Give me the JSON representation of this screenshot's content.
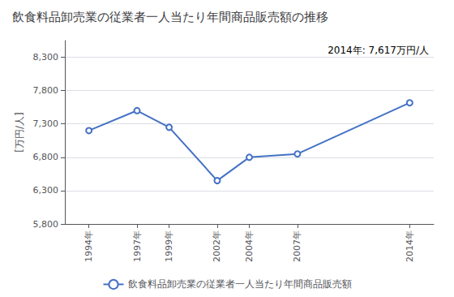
{
  "chart_data": {
    "type": "line",
    "title": "飲食料品卸売業の従業者一人当たり年間商品販売額の推移",
    "ylabel": "[万円/人]",
    "annotation": "2014年: 7,617万円/人",
    "x": [
      1994,
      1997,
      1999,
      2002,
      2004,
      2007,
      2014
    ],
    "series": [
      {
        "name": "飲食料品卸売業の従業者一人当たり年間商品販売額",
        "color": "#4472C4",
        "values": [
          7200,
          7500,
          7250,
          6450,
          6800,
          6850,
          7617
        ]
      }
    ],
    "xlim": [
      1992.5,
      2015.5
    ],
    "xticks": [
      {
        "value": 1994,
        "label": "1994年"
      },
      {
        "value": 1997,
        "label": "1997年"
      },
      {
        "value": 1999,
        "label": "1999年"
      },
      {
        "value": 2002,
        "label": "2002年"
      },
      {
        "value": 2004,
        "label": "2004年"
      },
      {
        "value": 2007,
        "label": "2007年"
      },
      {
        "value": 2014,
        "label": "2014年"
      }
    ],
    "ylim": [
      5800,
      8550
    ],
    "yticks": [
      {
        "value": 5800,
        "label": "5,800"
      },
      {
        "value": 6300,
        "label": "6,300"
      },
      {
        "value": 6800,
        "label": "6,800"
      },
      {
        "value": 7300,
        "label": "7,300"
      },
      {
        "value": 7800,
        "label": "7,800"
      },
      {
        "value": 8300,
        "label": "8,300"
      }
    ],
    "marker": "circle",
    "grid": true,
    "legend": "bottom"
  }
}
